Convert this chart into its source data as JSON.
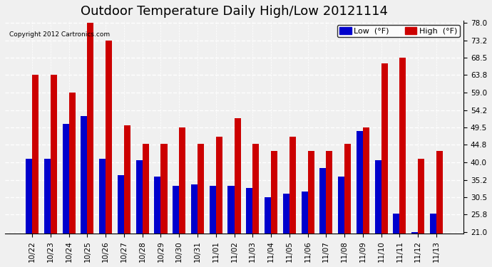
{
  "title": "Outdoor Temperature Daily High/Low 20121114",
  "copyright": "Copyright 2012 Cartronics.com",
  "legend_low": "Low  (°F)",
  "legend_high": "High  (°F)",
  "low_color": "#0000cc",
  "high_color": "#cc0000",
  "categories": [
    "10/22",
    "10/23",
    "10/24",
    "10/25",
    "10/26",
    "10/27",
    "10/28",
    "10/29",
    "10/30",
    "10/31",
    "11/01",
    "11/02",
    "11/03",
    "11/04",
    "11/05",
    "11/06",
    "11/07",
    "11/08",
    "11/09",
    "11/10",
    "11/11",
    "11/12",
    "11/13"
  ],
  "high_values": [
    63.8,
    63.8,
    59.0,
    78.0,
    73.2,
    50.0,
    45.0,
    45.0,
    49.5,
    45.0,
    47.0,
    52.0,
    45.0,
    43.0,
    47.0,
    43.0,
    43.0,
    45.0,
    49.5,
    67.0,
    68.5,
    41.0,
    43.0
  ],
  "low_values": [
    41.0,
    41.0,
    50.5,
    52.5,
    41.0,
    36.5,
    40.5,
    36.0,
    33.5,
    34.0,
    33.5,
    33.5,
    33.0,
    30.5,
    31.5,
    32.0,
    38.5,
    36.0,
    48.5,
    40.5,
    26.0,
    21.0,
    26.0
  ],
  "ylim": [
    21.0,
    78.0
  ],
  "yticks": [
    21.0,
    25.8,
    30.5,
    35.2,
    40.0,
    44.8,
    49.5,
    54.2,
    59.0,
    63.8,
    68.5,
    73.2,
    78.0
  ],
  "background_color": "#f0f0f0",
  "grid_color": "#ffffff",
  "bar_width": 0.35,
  "title_fontsize": 13,
  "tick_fontsize": 7.5
}
